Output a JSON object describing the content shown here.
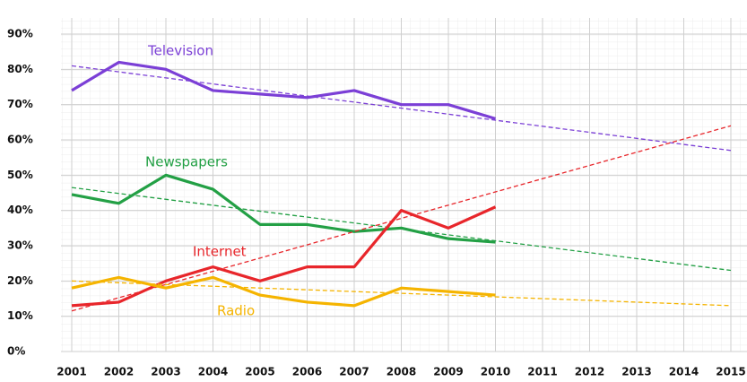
{
  "chart_data": {
    "type": "line",
    "x": [
      2001,
      2002,
      2003,
      2004,
      2005,
      2006,
      2007,
      2008,
      2009,
      2010
    ],
    "series": [
      {
        "name": "Television",
        "color": "#7b3fd6",
        "values": [
          74,
          82,
          80,
          74,
          73,
          72,
          74,
          70,
          70,
          66
        ],
        "trend": [
          81,
          57
        ]
      },
      {
        "name": "Newspapers",
        "color": "#23a045",
        "values": [
          44.5,
          42,
          50,
          46,
          36,
          36,
          34,
          35,
          32,
          31
        ],
        "trend": [
          46.5,
          23
        ]
      },
      {
        "name": "Internet",
        "color": "#e8262b",
        "values": [
          13,
          14,
          20,
          24,
          20,
          24,
          24,
          40,
          35,
          41
        ],
        "trend": [
          11.5,
          64
        ]
      },
      {
        "name": "Radio",
        "color": "#f5b400",
        "values": [
          18,
          21,
          18,
          21,
          16,
          14,
          13,
          18,
          17,
          16
        ],
        "trend": [
          20,
          13
        ]
      }
    ],
    "xlim": [
      2001,
      2015
    ],
    "xticks": [
      2001,
      2002,
      2003,
      2004,
      2005,
      2006,
      2007,
      2008,
      2009,
      2010,
      2011,
      2012,
      2013,
      2014,
      2015
    ],
    "ylim": [
      0,
      90
    ],
    "yticks": [
      {
        "value": 0,
        "label": "0%"
      },
      {
        "value": 10,
        "label": "10%"
      },
      {
        "value": 20,
        "label": "20%"
      },
      {
        "value": 30,
        "label": "30%"
      },
      {
        "value": 40,
        "label": "40%"
      },
      {
        "value": 50,
        "label": "50%"
      },
      {
        "value": 60,
        "label": "60%"
      },
      {
        "value": 70,
        "label": "70%"
      },
      {
        "value": 80,
        "label": "80%"
      },
      {
        "value": 90,
        "label": "90%"
      }
    ],
    "grid": true
  }
}
